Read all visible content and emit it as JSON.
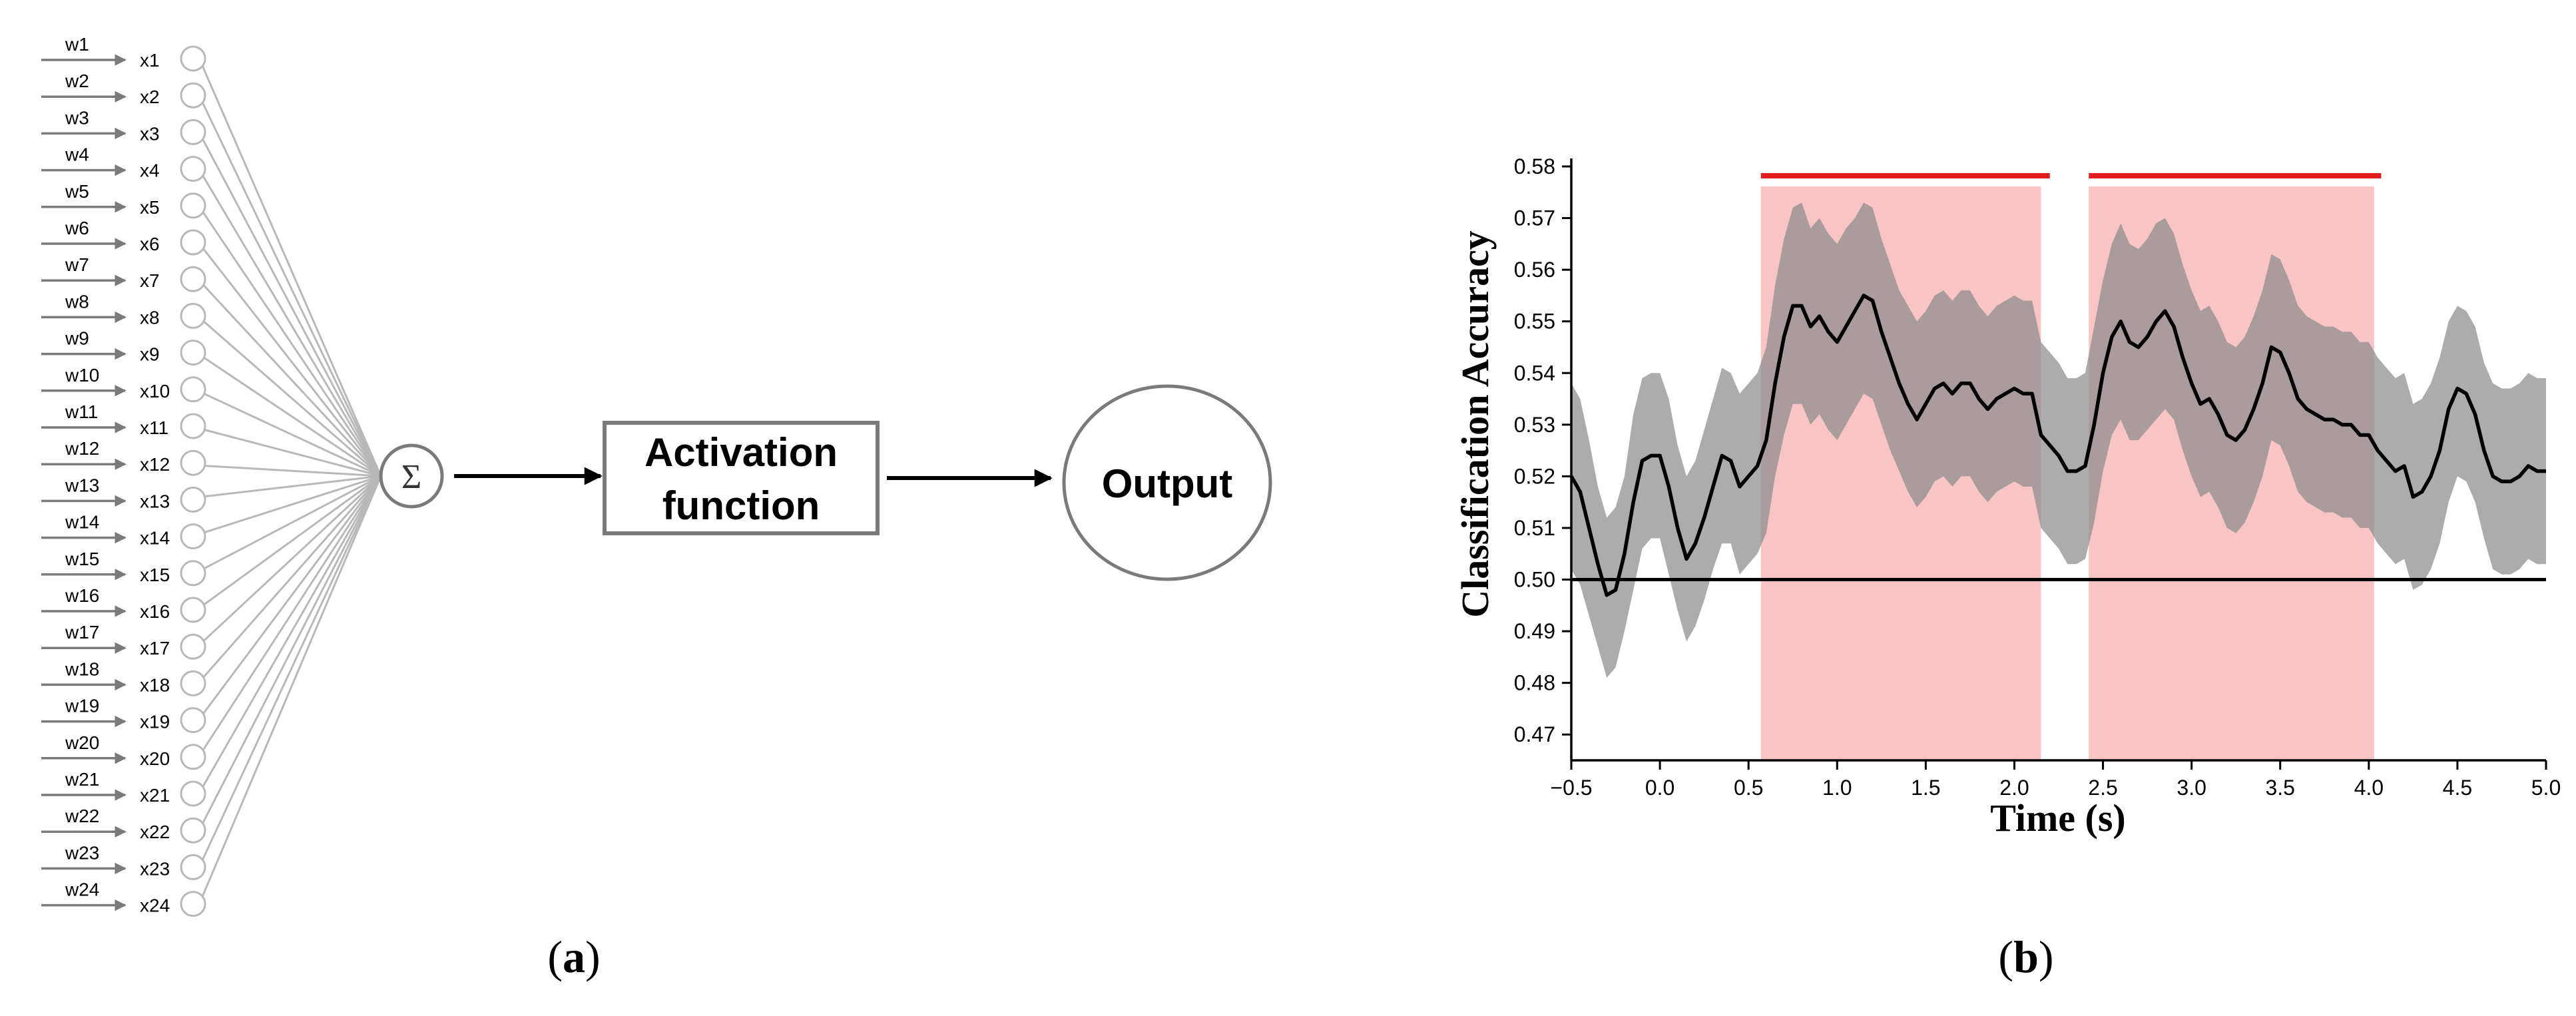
{
  "panel_a": {
    "inputs": [
      {
        "weight": "w1",
        "input": "x1"
      },
      {
        "weight": "w2",
        "input": "x2"
      },
      {
        "weight": "w3",
        "input": "x3"
      },
      {
        "weight": "w4",
        "input": "x4"
      },
      {
        "weight": "w5",
        "input": "x5"
      },
      {
        "weight": "w6",
        "input": "x6"
      },
      {
        "weight": "w7",
        "input": "x7"
      },
      {
        "weight": "w8",
        "input": "x8"
      },
      {
        "weight": "w9",
        "input": "x9"
      },
      {
        "weight": "w10",
        "input": "x10"
      },
      {
        "weight": "w11",
        "input": "x11"
      },
      {
        "weight": "w12",
        "input": "x12"
      },
      {
        "weight": "w13",
        "input": "x13"
      },
      {
        "weight": "w14",
        "input": "x14"
      },
      {
        "weight": "w15",
        "input": "x15"
      },
      {
        "weight": "w16",
        "input": "x16"
      },
      {
        "weight": "w17",
        "input": "x17"
      },
      {
        "weight": "w18",
        "input": "x18"
      },
      {
        "weight": "w19",
        "input": "x19"
      },
      {
        "weight": "w20",
        "input": "x20"
      },
      {
        "weight": "w21",
        "input": "x21"
      },
      {
        "weight": "w22",
        "input": "x22"
      },
      {
        "weight": "w23",
        "input": "x23"
      },
      {
        "weight": "w24",
        "input": "x24"
      }
    ],
    "sum_symbol": "Σ",
    "activation_line1": "Activation",
    "activation_line2": "function",
    "output_label": "Output",
    "caption": "(a)"
  },
  "panel_b": {
    "caption": "(b)",
    "chart_data": {
      "type": "line",
      "xlabel": "Time (s)",
      "ylabel": "Classification Accuracy",
      "xlim": [
        -0.5,
        5.0
      ],
      "ylim": [
        0.465,
        0.58
      ],
      "x_ticks": [
        -0.5,
        0.0,
        0.5,
        1.0,
        1.5,
        2.0,
        2.5,
        3.0,
        3.5,
        4.0,
        4.5,
        5.0
      ],
      "x_tick_labels": [
        "−0.5",
        "0.0",
        "0.5",
        "1.0",
        "1.5",
        "2.0",
        "2.5",
        "3.0",
        "3.5",
        "4.0",
        "4.5",
        "5.0"
      ],
      "y_ticks": [
        0.47,
        0.48,
        0.49,
        0.5,
        0.51,
        0.52,
        0.53,
        0.54,
        0.55,
        0.56,
        0.57,
        0.58
      ],
      "y_tick_labels": [
        "0.47",
        "0.48",
        "0.49",
        "0.50",
        "0.51",
        "0.52",
        "0.53",
        "0.54",
        "0.55",
        "0.56",
        "0.57",
        "0.58"
      ],
      "chance_level": 0.5,
      "significance_bars": [
        [
          0.57,
          2.2
        ],
        [
          2.42,
          4.07
        ]
      ],
      "shaded_windows": [
        [
          0.57,
          2.15
        ],
        [
          2.42,
          4.03
        ]
      ],
      "colors": {
        "mean": "#000000",
        "ci_band": "#8c8c8c",
        "significance": "#e02020",
        "window": "#f4a0a0"
      },
      "series": [
        {
          "x": [
            -0.5,
            -0.45,
            -0.4,
            -0.35,
            -0.3,
            -0.25,
            -0.2,
            -0.15,
            -0.1,
            -0.05,
            0.0,
            0.05,
            0.1,
            0.15,
            0.2,
            0.25,
            0.3,
            0.35,
            0.4,
            0.45,
            0.5,
            0.55,
            0.6,
            0.65,
            0.7,
            0.75,
            0.8,
            0.85,
            0.9,
            0.95,
            1.0,
            1.05,
            1.1,
            1.15,
            1.2,
            1.25,
            1.3,
            1.35,
            1.4,
            1.45,
            1.5,
            1.55,
            1.6,
            1.65,
            1.7,
            1.75,
            1.8,
            1.85,
            1.9,
            1.95,
            2.0,
            2.05,
            2.1,
            2.15,
            2.2,
            2.25,
            2.3,
            2.35,
            2.4,
            2.45,
            2.5,
            2.55,
            2.6,
            2.65,
            2.7,
            2.75,
            2.8,
            2.85,
            2.9,
            2.95,
            3.0,
            3.05,
            3.1,
            3.15,
            3.2,
            3.25,
            3.3,
            3.35,
            3.4,
            3.45,
            3.5,
            3.55,
            3.6,
            3.65,
            3.7,
            3.75,
            3.8,
            3.85,
            3.9,
            3.95,
            4.0,
            4.05,
            4.1,
            4.15,
            4.2,
            4.25,
            4.3,
            4.35,
            4.4,
            4.45,
            4.5,
            4.55,
            4.6,
            4.65,
            4.7,
            4.75,
            4.8,
            4.85,
            4.9,
            4.95,
            5.0
          ],
          "mean": [
            0.52,
            0.517,
            0.51,
            0.503,
            0.497,
            0.498,
            0.505,
            0.515,
            0.523,
            0.524,
            0.524,
            0.518,
            0.51,
            0.504,
            0.507,
            0.512,
            0.518,
            0.524,
            0.523,
            0.518,
            0.52,
            0.522,
            0.527,
            0.538,
            0.547,
            0.553,
            0.553,
            0.549,
            0.551,
            0.548,
            0.546,
            0.549,
            0.552,
            0.555,
            0.554,
            0.548,
            0.543,
            0.538,
            0.534,
            0.531,
            0.534,
            0.537,
            0.538,
            0.536,
            0.538,
            0.538,
            0.535,
            0.533,
            0.535,
            0.536,
            0.537,
            0.536,
            0.536,
            0.528,
            0.526,
            0.524,
            0.521,
            0.521,
            0.522,
            0.53,
            0.54,
            0.547,
            0.55,
            0.546,
            0.545,
            0.547,
            0.55,
            0.552,
            0.549,
            0.543,
            0.538,
            0.534,
            0.535,
            0.532,
            0.528,
            0.527,
            0.529,
            0.533,
            0.538,
            0.545,
            0.544,
            0.54,
            0.535,
            0.533,
            0.532,
            0.531,
            0.531,
            0.53,
            0.53,
            0.528,
            0.528,
            0.525,
            0.523,
            0.521,
            0.522,
            0.516,
            0.517,
            0.52,
            0.525,
            0.533,
            0.537,
            0.536,
            0.532,
            0.525,
            0.52,
            0.519,
            0.519,
            0.52,
            0.522,
            0.521,
            0.521
          ],
          "upper": [
            0.538,
            0.535,
            0.527,
            0.518,
            0.512,
            0.514,
            0.52,
            0.532,
            0.539,
            0.54,
            0.54,
            0.535,
            0.526,
            0.52,
            0.523,
            0.529,
            0.535,
            0.541,
            0.54,
            0.536,
            0.538,
            0.54,
            0.545,
            0.557,
            0.566,
            0.572,
            0.573,
            0.568,
            0.57,
            0.567,
            0.565,
            0.568,
            0.57,
            0.573,
            0.572,
            0.566,
            0.561,
            0.556,
            0.553,
            0.55,
            0.552,
            0.555,
            0.556,
            0.554,
            0.556,
            0.556,
            0.553,
            0.551,
            0.553,
            0.554,
            0.555,
            0.554,
            0.554,
            0.546,
            0.544,
            0.542,
            0.539,
            0.539,
            0.54,
            0.549,
            0.558,
            0.565,
            0.569,
            0.565,
            0.564,
            0.566,
            0.569,
            0.57,
            0.567,
            0.561,
            0.556,
            0.552,
            0.553,
            0.55,
            0.546,
            0.545,
            0.547,
            0.551,
            0.556,
            0.563,
            0.562,
            0.558,
            0.553,
            0.551,
            0.55,
            0.549,
            0.549,
            0.548,
            0.548,
            0.546,
            0.546,
            0.543,
            0.541,
            0.539,
            0.54,
            0.534,
            0.535,
            0.538,
            0.543,
            0.55,
            0.553,
            0.552,
            0.549,
            0.542,
            0.538,
            0.537,
            0.537,
            0.538,
            0.54,
            0.539,
            0.539
          ],
          "lower": [
            0.502,
            0.499,
            0.493,
            0.487,
            0.481,
            0.483,
            0.49,
            0.498,
            0.506,
            0.508,
            0.508,
            0.501,
            0.494,
            0.488,
            0.491,
            0.496,
            0.502,
            0.507,
            0.507,
            0.501,
            0.503,
            0.505,
            0.509,
            0.52,
            0.528,
            0.534,
            0.534,
            0.53,
            0.532,
            0.529,
            0.527,
            0.53,
            0.533,
            0.536,
            0.535,
            0.53,
            0.525,
            0.521,
            0.517,
            0.514,
            0.516,
            0.519,
            0.52,
            0.518,
            0.52,
            0.52,
            0.517,
            0.515,
            0.517,
            0.518,
            0.519,
            0.518,
            0.518,
            0.51,
            0.508,
            0.506,
            0.503,
            0.503,
            0.504,
            0.511,
            0.521,
            0.528,
            0.531,
            0.527,
            0.527,
            0.529,
            0.531,
            0.533,
            0.531,
            0.525,
            0.52,
            0.516,
            0.517,
            0.514,
            0.51,
            0.509,
            0.511,
            0.515,
            0.52,
            0.527,
            0.526,
            0.522,
            0.517,
            0.515,
            0.514,
            0.513,
            0.513,
            0.512,
            0.512,
            0.51,
            0.51,
            0.507,
            0.505,
            0.503,
            0.504,
            0.498,
            0.499,
            0.502,
            0.507,
            0.515,
            0.52,
            0.519,
            0.515,
            0.508,
            0.502,
            0.501,
            0.501,
            0.502,
            0.504,
            0.503,
            0.503
          ]
        }
      ]
    }
  }
}
